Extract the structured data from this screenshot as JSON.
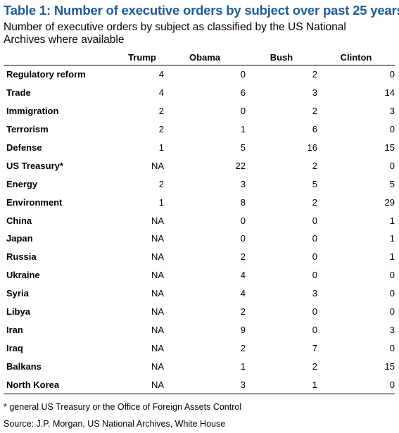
{
  "title": "Table 1: Number of executive orders by subject over past 25 years",
  "subtitle": "Number of executive orders by subject as classified by the US National Archives where available",
  "columns": [
    "",
    "Trump",
    "Obama",
    "Bush",
    "Clinton"
  ],
  "rows": [
    {
      "subject": "Regulatory reform",
      "trump": "4",
      "obama": "0",
      "bush": "2",
      "clinton": "0"
    },
    {
      "subject": "Trade",
      "trump": "4",
      "obama": "6",
      "bush": "3",
      "clinton": "14"
    },
    {
      "subject": "Immigration",
      "trump": "2",
      "obama": "0",
      "bush": "2",
      "clinton": "3"
    },
    {
      "subject": "Terrorism",
      "trump": "2",
      "obama": "1",
      "bush": "6",
      "clinton": "0"
    },
    {
      "subject": "Defense",
      "trump": "1",
      "obama": "5",
      "bush": "16",
      "clinton": "15"
    },
    {
      "subject": "US Treasury*",
      "trump": "NA",
      "obama": "22",
      "bush": "2",
      "clinton": "0"
    },
    {
      "subject": "Energy",
      "trump": "2",
      "obama": "3",
      "bush": "5",
      "clinton": "5"
    },
    {
      "subject": "Environment",
      "trump": "1",
      "obama": "8",
      "bush": "2",
      "clinton": "29"
    },
    {
      "subject": "China",
      "trump": "NA",
      "obama": "0",
      "bush": "0",
      "clinton": "1"
    },
    {
      "subject": "Japan",
      "trump": "NA",
      "obama": "0",
      "bush": "0",
      "clinton": "1"
    },
    {
      "subject": "Russia",
      "trump": "NA",
      "obama": "2",
      "bush": "0",
      "clinton": "1"
    },
    {
      "subject": "Ukraine",
      "trump": "NA",
      "obama": "4",
      "bush": "0",
      "clinton": "0"
    },
    {
      "subject": "Syria",
      "trump": "NA",
      "obama": "4",
      "bush": "3",
      "clinton": "0"
    },
    {
      "subject": "Libya",
      "trump": "NA",
      "obama": "2",
      "bush": "0",
      "clinton": "0"
    },
    {
      "subject": "Iran",
      "trump": "NA",
      "obama": "9",
      "bush": "0",
      "clinton": "3"
    },
    {
      "subject": "Iraq",
      "trump": "NA",
      "obama": "2",
      "bush": "7",
      "clinton": "0"
    },
    {
      "subject": "Balkans",
      "trump": "NA",
      "obama": "1",
      "bush": "2",
      "clinton": "15"
    },
    {
      "subject": "North Korea",
      "trump": "NA",
      "obama": "3",
      "bush": "1",
      "clinton": "0"
    }
  ],
  "footnote": "* general US Treasury or the Office of Foreign Assets Control",
  "source": "Source: J.P. Morgan, US National Archives, White House",
  "colors": {
    "title": "#1f5c99"
  }
}
